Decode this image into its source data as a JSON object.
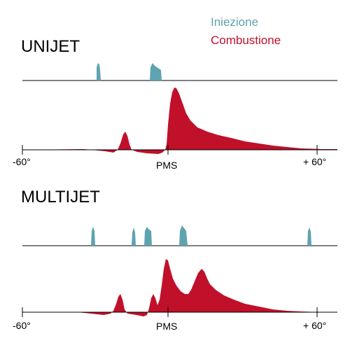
{
  "legend": {
    "injection": {
      "label": "Iniezione",
      "color": "#5ea3b0"
    },
    "combustion": {
      "label": "Combustione",
      "color": "#c0102a"
    }
  },
  "panels": [
    {
      "id": "unijet",
      "title": "UNIJET",
      "axis": {
        "min": -60,
        "max": 60,
        "center": 0
      },
      "tick_labels": {
        "left": "-60°",
        "center": "PMS",
        "right": "+ 60°"
      }
    },
    {
      "id": "multijet",
      "title": "MULTIJET",
      "axis": {
        "min": -60,
        "max": 60,
        "center": 0
      },
      "tick_labels": {
        "left": "-60°",
        "center": "PMS",
        "right": "+ 60°"
      }
    }
  ]
}
